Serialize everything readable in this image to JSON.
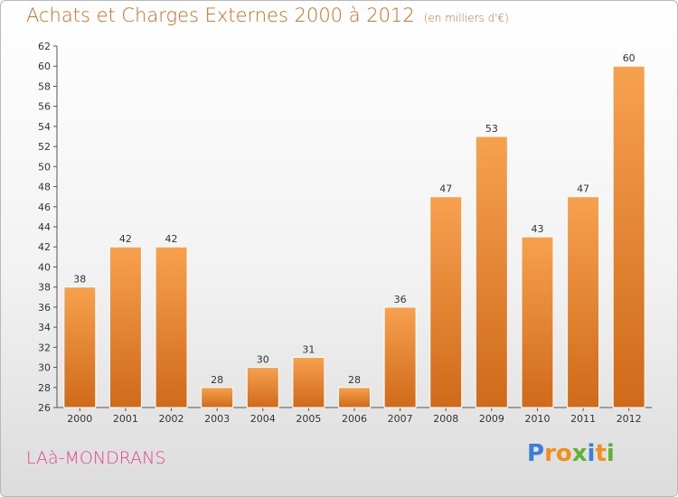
{
  "header": {
    "title": "Achats et Charges Externes 2000 à 2012",
    "unit": "(en milliers d'€)"
  },
  "footer": {
    "commune": "LAà-MONDRANS",
    "logo": "Proxiti"
  },
  "colors": {
    "title": "#d2691e",
    "commune": "#e0448c",
    "bar_top": "#f7a14e",
    "bar_bottom": "#cf6a1a",
    "logo_letters": [
      "#3a7fd5",
      "#f0901c",
      "#f0901c",
      "#5cb531",
      "#3a7fd5",
      "#f0901c",
      "#5cb531"
    ]
  },
  "chart_data": {
    "type": "bar",
    "categories": [
      "2000",
      "2001",
      "2002",
      "2003",
      "2004",
      "2005",
      "2006",
      "2007",
      "2008",
      "2009",
      "2010",
      "2011",
      "2012"
    ],
    "values": [
      38,
      42,
      42,
      28,
      30,
      31,
      28,
      36,
      47,
      53,
      43,
      47,
      60
    ],
    "ylim": [
      26,
      62
    ],
    "yticks": [
      26,
      28,
      30,
      32,
      34,
      36,
      38,
      40,
      42,
      44,
      46,
      48,
      50,
      52,
      54,
      56,
      58,
      60,
      62
    ],
    "grid": false,
    "legend": "none"
  }
}
